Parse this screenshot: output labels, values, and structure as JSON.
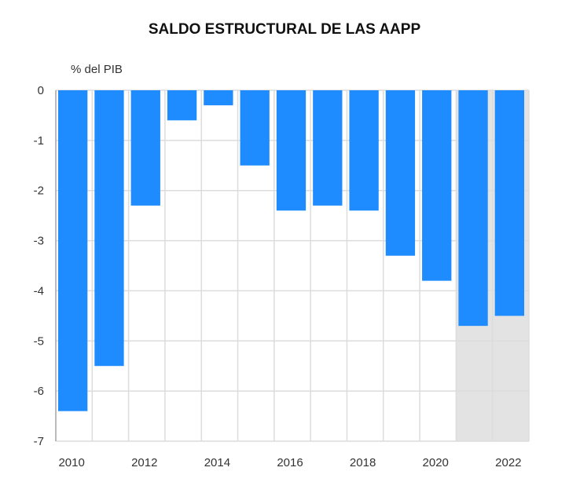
{
  "chart_data": {
    "type": "bar",
    "title": "SALDO ESTRUCTURAL DE LAS AAPP",
    "ylabel": "% del PIB",
    "xlabel": "",
    "categories": [
      "2010",
      "2011",
      "2012",
      "2013",
      "2014",
      "2015",
      "2016",
      "2017",
      "2018",
      "2019",
      "2020",
      "2021",
      "2022"
    ],
    "values": [
      -6.4,
      -5.5,
      -2.3,
      -0.6,
      -0.3,
      -1.5,
      -2.4,
      -2.3,
      -2.4,
      -3.3,
      -3.8,
      -4.7,
      -4.5
    ],
    "x_tick_labels": [
      "2010",
      "2012",
      "2014",
      "2016",
      "2018",
      "2020",
      "2022"
    ],
    "y_tick_labels": [
      "0",
      "-1",
      "-2",
      "-3",
      "-4",
      "-5",
      "-6",
      "-7"
    ],
    "ylim": [
      -7,
      0
    ],
    "grid": true,
    "shaded_categories": [
      "2021",
      "2022"
    ],
    "colors": {
      "bar": "#1e8cff",
      "shade": "#e3e3e3",
      "grid": "#dcdcdc"
    }
  }
}
